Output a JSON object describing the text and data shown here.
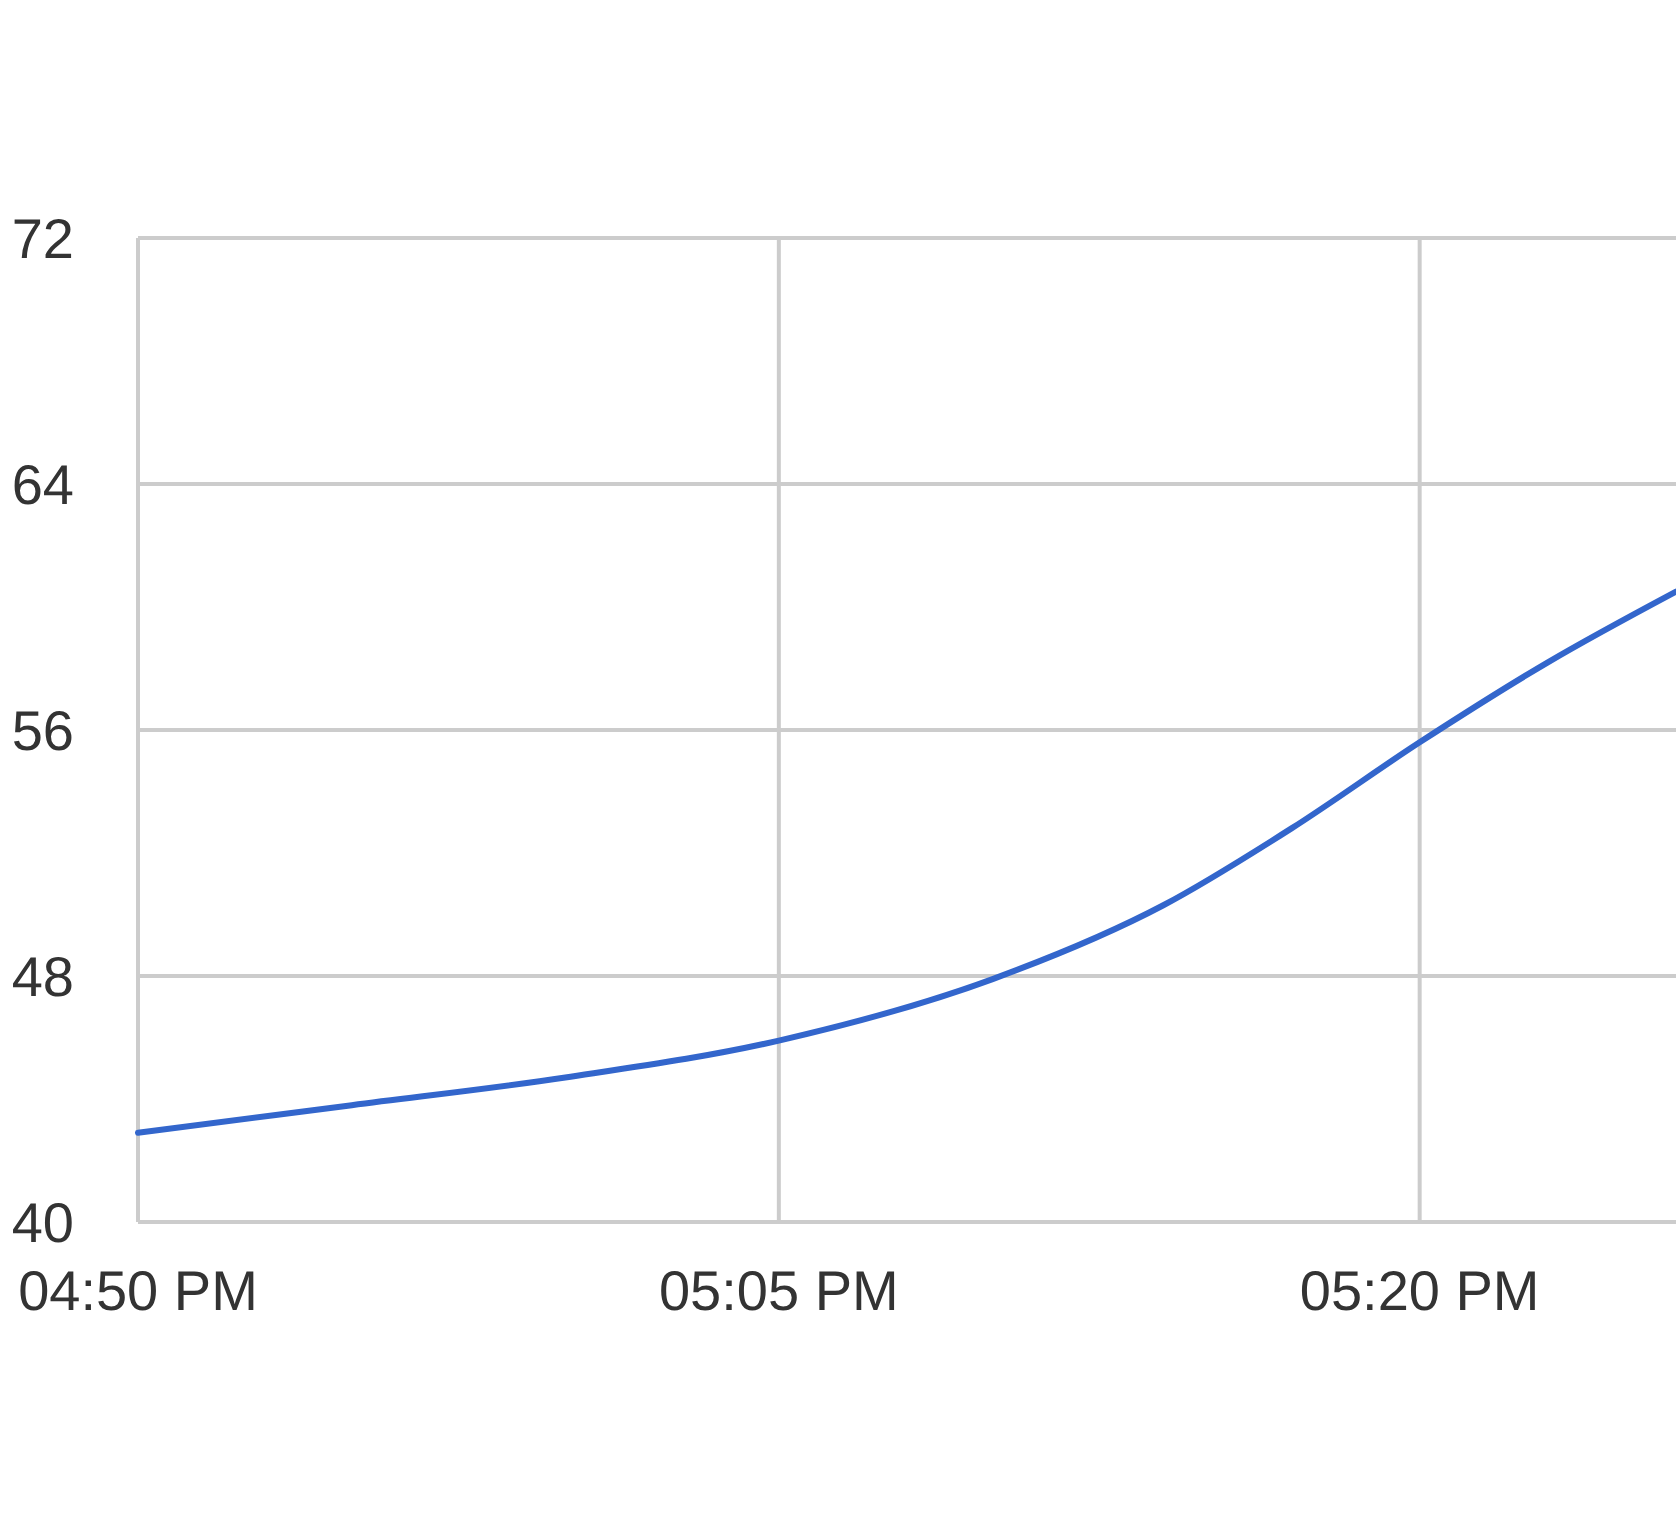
{
  "chart_data": {
    "type": "line",
    "x": [
      16.8333,
      16.9167,
      17.0,
      17.0833,
      17.1667,
      17.2333,
      17.2833,
      17.3333,
      17.3833,
      17.4333
    ],
    "series": [
      {
        "color": "#3366cc",
        "values": [
          42.9,
          43.8,
          44.7,
          45.9,
          47.9,
          50.3,
          52.8,
          55.6,
          58.2,
          60.5
        ]
      }
    ],
    "xlim": [
      16.8333,
      17.4333
    ],
    "xticks": [
      {
        "value": 16.8333,
        "label": "04:50 PM"
      },
      {
        "value": 17.0833,
        "label": "05:05 PM"
      },
      {
        "value": 17.3333,
        "label": "05:20 PM"
      }
    ],
    "ylim": [
      40,
      72
    ],
    "yticks": [
      40,
      48,
      56,
      64,
      72
    ],
    "grid": true,
    "line_style": "solid"
  }
}
